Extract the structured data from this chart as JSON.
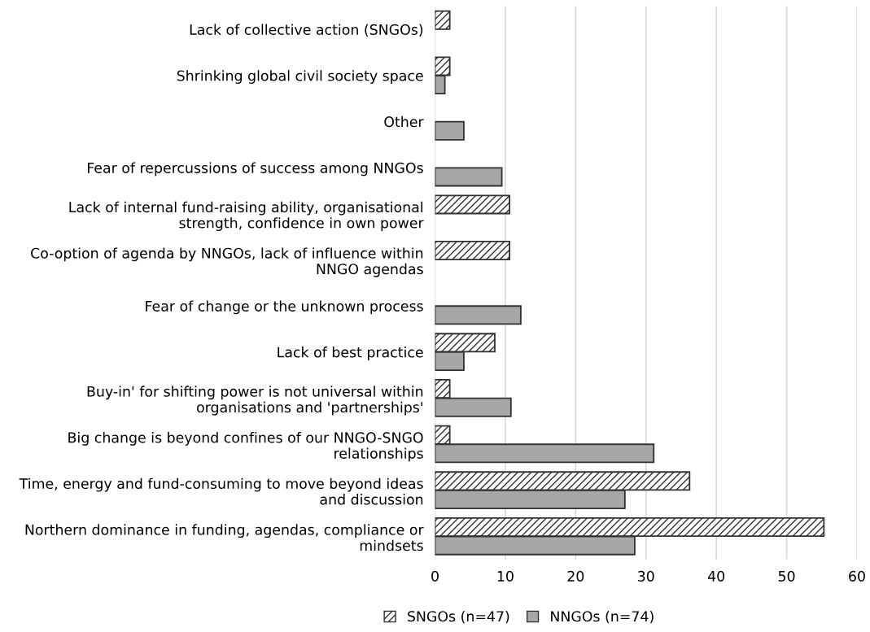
{
  "chart_data": {
    "type": "bar",
    "orientation": "horizontal",
    "categories": [
      "Lack of collective action (SNGOs)",
      "Shrinking global civil society space",
      "Other",
      "Fear of repercussions of success among NNGOs",
      "Lack of internal fund-raising ability, organisational\nstrength, confidence in own power",
      "Co-option of agenda by NNGOs, lack of influence within\nNNGO agendas",
      "Fear of change or the unknown process",
      "Lack of best practice",
      "Buy-in' for shifting power is not universal within\norganisations and 'partnerships'",
      "Big change is beyond confines of our NNGO-SNGO\nrelationships",
      "Time, energy and fund-consuming to move beyond ideas\nand discussion",
      "Northern dominance in funding, agendas, compliance or\nmindsets"
    ],
    "series": [
      {
        "name": "SNGOs (n=47)",
        "color": "#303030",
        "values": [
          2.1,
          2.1,
          null,
          null,
          10.6,
          10.6,
          null,
          8.5,
          2.1,
          2.1,
          36.2,
          55.3
        ]
      },
      {
        "name": "NNGOs (n=74)",
        "color": "#a7a7a9",
        "values": [
          null,
          1.4,
          4.1,
          9.5,
          null,
          null,
          12.2,
          4.1,
          10.8,
          31.1,
          27.0,
          28.4
        ]
      }
    ],
    "xlim": [
      0,
      60
    ],
    "xticks": [
      0,
      10,
      20,
      30,
      40,
      50,
      60
    ],
    "grid": "x",
    "legend": "bottom"
  }
}
